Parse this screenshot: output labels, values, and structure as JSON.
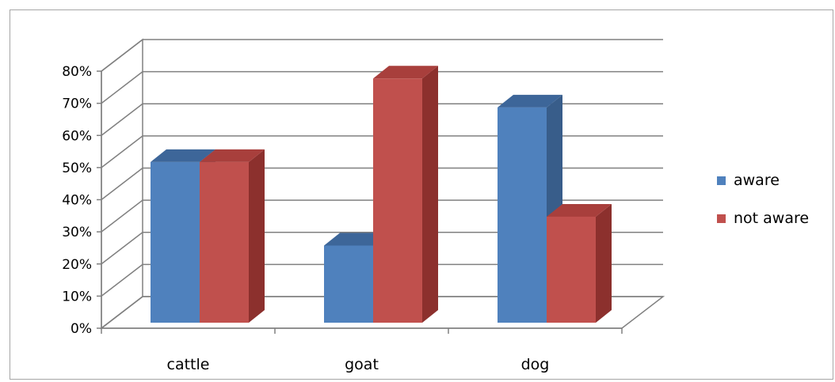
{
  "chart_data": {
    "type": "bar",
    "categories": [
      "cattle",
      "goat",
      "dog"
    ],
    "series": [
      {
        "name": "aware",
        "values": [
          50,
          24,
          67
        ],
        "color": "#4f81bd",
        "side_color": "#385d8a",
        "top_color": "#3d6699"
      },
      {
        "name": "not aware",
        "values": [
          50,
          76,
          33
        ],
        "color": "#c0504d",
        "side_color": "#8c302d",
        "top_color": "#a83f3c"
      }
    ],
    "yticks": [
      "0%",
      "10%",
      "20%",
      "30%",
      "40%",
      "50%",
      "60%",
      "70%",
      "80%"
    ],
    "ylim": [
      0,
      80
    ],
    "y_unit": "%",
    "grid": true,
    "legend_position": "right",
    "style": "3d-clustered-column"
  }
}
